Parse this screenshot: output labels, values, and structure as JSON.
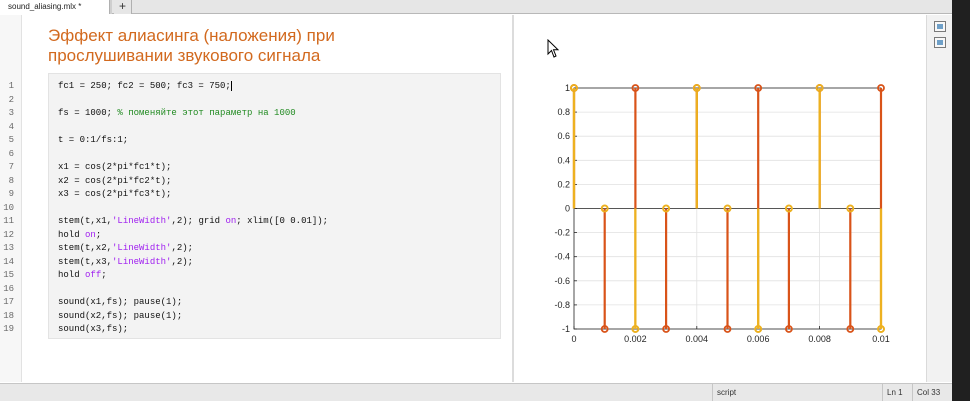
{
  "tabs": [
    {
      "label": "sound_aliasing.mlx *"
    }
  ],
  "add_tab_label": "+",
  "title_line1": "Эффект алиасинга (наложения) при",
  "title_line2": "прослушивании звукового сигнала",
  "code_lines": [
    {
      "n": "1",
      "parts": [
        {
          "t": "fc1 = 250; fc2 = 500; fc3 = 750;",
          "c": ""
        }
      ],
      "cursor": true
    },
    {
      "n": "2",
      "parts": []
    },
    {
      "n": "3",
      "parts": [
        {
          "t": "fs = 1000; ",
          "c": ""
        },
        {
          "t": "% поменяйте этот параметр на 1000",
          "c": "cmt"
        }
      ]
    },
    {
      "n": "4",
      "parts": []
    },
    {
      "n": "5",
      "parts": [
        {
          "t": "t = 0:1/fs:1;",
          "c": ""
        }
      ]
    },
    {
      "n": "6",
      "parts": []
    },
    {
      "n": "7",
      "parts": [
        {
          "t": "x1 = cos(2*pi*fc1*t);",
          "c": ""
        }
      ]
    },
    {
      "n": "8",
      "parts": [
        {
          "t": "x2 = cos(2*pi*fc2*t);",
          "c": ""
        }
      ]
    },
    {
      "n": "9",
      "parts": [
        {
          "t": "x3 = cos(2*pi*fc3*t);",
          "c": ""
        }
      ]
    },
    {
      "n": "10",
      "parts": []
    },
    {
      "n": "11",
      "parts": [
        {
          "t": "stem(t,x1,",
          "c": ""
        },
        {
          "t": "'LineWidth'",
          "c": "str"
        },
        {
          "t": ",2); grid ",
          "c": ""
        },
        {
          "t": "on",
          "c": "str"
        },
        {
          "t": "; xlim([0 0.01]);",
          "c": ""
        }
      ]
    },
    {
      "n": "12",
      "parts": [
        {
          "t": "hold ",
          "c": ""
        },
        {
          "t": "on",
          "c": "str"
        },
        {
          "t": ";",
          "c": ""
        }
      ]
    },
    {
      "n": "13",
      "parts": [
        {
          "t": "stem(t,x2,",
          "c": ""
        },
        {
          "t": "'LineWidth'",
          "c": "str"
        },
        {
          "t": ",2);",
          "c": ""
        }
      ]
    },
    {
      "n": "14",
      "parts": [
        {
          "t": "stem(t,x3,",
          "c": ""
        },
        {
          "t": "'LineWidth'",
          "c": "str"
        },
        {
          "t": ",2);",
          "c": ""
        }
      ]
    },
    {
      "n": "15",
      "parts": [
        {
          "t": "hold ",
          "c": ""
        },
        {
          "t": "off",
          "c": "str"
        },
        {
          "t": ";",
          "c": ""
        }
      ]
    },
    {
      "n": "16",
      "parts": []
    },
    {
      "n": "17",
      "parts": [
        {
          "t": "sound(x1,fs); pause(1);",
          "c": ""
        }
      ]
    },
    {
      "n": "18",
      "parts": [
        {
          "t": "sound(x2,fs); pause(1);",
          "c": ""
        }
      ]
    },
    {
      "n": "19",
      "parts": [
        {
          "t": "sound(x3,fs);",
          "c": ""
        }
      ]
    }
  ],
  "status": {
    "mode": "script",
    "ln_label": "Ln",
    "ln_value": "1",
    "col_label": "Col",
    "col_value": "33"
  },
  "chart_data": {
    "type": "stem",
    "xlim": [
      0,
      0.01
    ],
    "ylim": [
      -1,
      1
    ],
    "grid": true,
    "xticks": [
      0,
      0.002,
      0.004,
      0.006,
      0.008,
      0.01
    ],
    "xtick_labels": [
      "0",
      "0.002",
      "0.004",
      "0.006",
      "0.008",
      "0.01"
    ],
    "yticks": [
      1,
      0.8,
      0.6,
      0.4,
      0.2,
      0,
      -0.2,
      -0.4,
      -0.6,
      -0.8,
      -1
    ],
    "ytick_labels": [
      "1",
      "0.8",
      "0.6",
      "0.4",
      "0.2",
      "0",
      "-0.2",
      "-0.4",
      "-0.6",
      "-0.8",
      "-1"
    ],
    "series": [
      {
        "color": "#edb120",
        "x": [
          0,
          0.001,
          0.002,
          0.003,
          0.004,
          0.005,
          0.006,
          0.007,
          0.008,
          0.009,
          0.01
        ],
        "y": [
          1,
          0,
          -1,
          0,
          1,
          0,
          -1,
          0,
          1,
          0,
          -1
        ]
      },
      {
        "color": "#d95319",
        "x": [
          0,
          0.001,
          0.002,
          0.003,
          0.004,
          0.005,
          0.006,
          0.007,
          0.008,
          0.009,
          0.01
        ],
        "y": [
          1,
          -1,
          1,
          -1,
          1,
          -1,
          1,
          -1,
          1,
          -1,
          1
        ]
      },
      {
        "color": "#edb120",
        "x": [
          0,
          0.001,
          0.002,
          0.003,
          0.004,
          0.005,
          0.006,
          0.007,
          0.008,
          0.009,
          0.01
        ],
        "y": [
          1,
          0,
          -1,
          0,
          1,
          0,
          -1,
          0,
          1,
          0,
          -1
        ]
      }
    ]
  }
}
